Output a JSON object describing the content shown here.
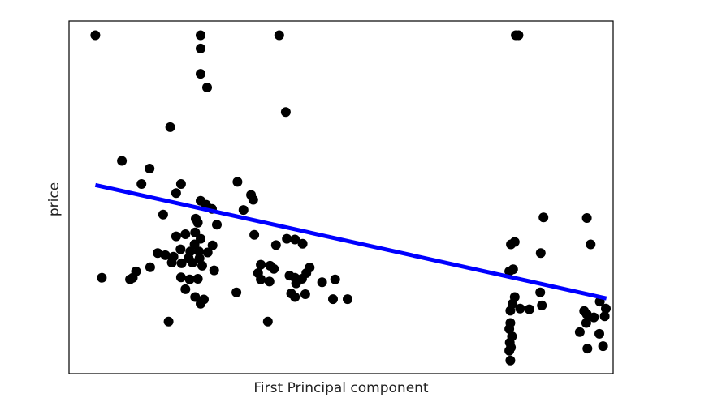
{
  "chart_data": {
    "type": "scatter",
    "title": "",
    "xlabel": "First Principal component",
    "ylabel": "price",
    "xlim": [
      0,
      100
    ],
    "ylim": [
      0,
      100
    ],
    "show_ticks": false,
    "grid": false,
    "legend": "none",
    "series": [
      {
        "kind": "scatter",
        "color": "#000000",
        "points": [
          [
            4.7,
            3.8
          ],
          [
            24.1,
            3.8
          ],
          [
            38.6,
            3.8
          ],
          [
            82.2,
            3.8
          ],
          [
            82.7,
            3.8
          ],
          [
            24.1,
            7.6
          ],
          [
            24.1,
            14.8
          ],
          [
            25.3,
            18.7
          ],
          [
            39.8,
            25.7
          ],
          [
            18.5,
            30.0
          ],
          [
            9.6,
            39.6
          ],
          [
            14.7,
            41.8
          ],
          [
            13.2,
            46.2
          ],
          [
            20.5,
            46.2
          ],
          [
            19.6,
            48.8
          ],
          [
            24.1,
            51.0
          ],
          [
            25.1,
            52.1
          ],
          [
            30.9,
            45.6
          ],
          [
            33.4,
            49.3
          ],
          [
            33.8,
            50.7
          ],
          [
            32.0,
            53.6
          ],
          [
            26.2,
            53.3
          ],
          [
            17.2,
            54.9
          ],
          [
            23.2,
            56.1
          ],
          [
            23.6,
            57.2
          ],
          [
            27.1,
            57.8
          ],
          [
            87.3,
            55.7
          ],
          [
            95.3,
            55.9
          ],
          [
            19.6,
            61.1
          ],
          [
            21.3,
            60.5
          ],
          [
            23.1,
            60.0
          ],
          [
            24.1,
            61.8
          ],
          [
            23.0,
            63.4
          ],
          [
            26.3,
            63.7
          ],
          [
            34.0,
            60.7
          ],
          [
            40.0,
            61.8
          ],
          [
            41.5,
            62.0
          ],
          [
            42.9,
            63.2
          ],
          [
            38.0,
            63.6
          ],
          [
            82.0,
            62.7
          ],
          [
            81.3,
            63.4
          ],
          [
            96.0,
            63.4
          ],
          [
            20.4,
            64.8
          ],
          [
            22.2,
            65.4
          ],
          [
            23.8,
            65.4
          ],
          [
            16.2,
            65.9
          ],
          [
            17.6,
            66.5
          ],
          [
            19.1,
            66.9
          ],
          [
            21.9,
            67.3
          ],
          [
            23.9,
            67.4
          ],
          [
            25.4,
            65.7
          ],
          [
            18.8,
            68.6
          ],
          [
            20.6,
            68.8
          ],
          [
            22.6,
            68.6
          ],
          [
            24.4,
            69.5
          ],
          [
            14.8,
            69.9
          ],
          [
            12.2,
            71.1
          ],
          [
            11.6,
            72.9
          ],
          [
            5.9,
            72.9
          ],
          [
            11.1,
            73.4
          ],
          [
            20.5,
            72.8
          ],
          [
            22.1,
            73.4
          ],
          [
            23.6,
            73.2
          ],
          [
            26.6,
            70.8
          ],
          [
            35.2,
            69.2
          ],
          [
            36.9,
            69.5
          ],
          [
            37.6,
            70.4
          ],
          [
            34.7,
            71.6
          ],
          [
            40.5,
            72.3
          ],
          [
            41.5,
            72.9
          ],
          [
            43.6,
            71.6
          ],
          [
            44.2,
            70.0
          ],
          [
            35.2,
            73.4
          ],
          [
            36.8,
            74.0
          ],
          [
            41.7,
            74.5
          ],
          [
            42.8,
            73.2
          ],
          [
            46.5,
            74.2
          ],
          [
            48.9,
            73.4
          ],
          [
            81.0,
            71.1
          ],
          [
            81.7,
            70.5
          ],
          [
            86.8,
            65.9
          ],
          [
            21.3,
            76.2
          ],
          [
            30.7,
            77.1
          ],
          [
            23.1,
            78.4
          ],
          [
            24.7,
            79.1
          ],
          [
            24.1,
            80.3
          ],
          [
            40.8,
            77.4
          ],
          [
            41.5,
            78.4
          ],
          [
            43.4,
            77.6
          ],
          [
            48.5,
            79.0
          ],
          [
            51.2,
            79.0
          ],
          [
            86.7,
            77.1
          ],
          [
            82.0,
            78.4
          ],
          [
            81.6,
            80.3
          ],
          [
            87.0,
            80.8
          ],
          [
            97.7,
            79.7
          ],
          [
            81.2,
            82.3
          ],
          [
            83.0,
            81.7
          ],
          [
            84.7,
            81.9
          ],
          [
            98.8,
            81.7
          ],
          [
            94.8,
            82.4
          ],
          [
            95.3,
            83.3
          ],
          [
            96.6,
            84.2
          ],
          [
            98.6,
            83.9
          ],
          [
            95.2,
            85.8
          ],
          [
            36.5,
            85.4
          ],
          [
            18.2,
            85.4
          ],
          [
            81.2,
            85.8
          ],
          [
            81.0,
            87.5
          ],
          [
            81.5,
            89.6
          ],
          [
            81.1,
            91.4
          ],
          [
            81.3,
            92.8
          ],
          [
            81.0,
            93.7
          ],
          [
            81.2,
            96.5
          ],
          [
            94.0,
            88.4
          ],
          [
            97.6,
            88.9
          ],
          [
            95.4,
            93.1
          ],
          [
            98.3,
            92.4
          ]
        ]
      },
      {
        "kind": "line",
        "color": "#0000ff",
        "points": [
          [
            4.7,
            46.5
          ],
          [
            98.9,
            78.8
          ]
        ]
      }
    ]
  }
}
